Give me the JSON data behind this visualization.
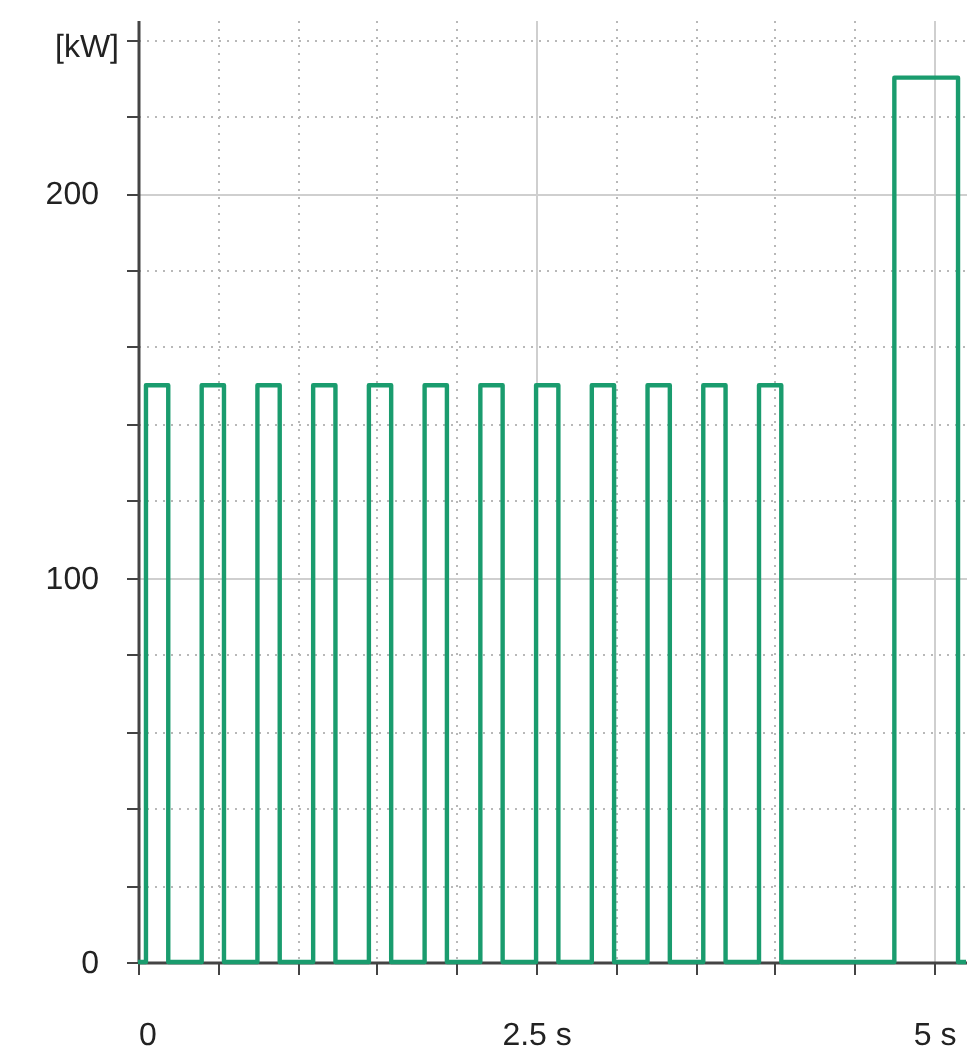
{
  "chart_data": {
    "type": "step",
    "ylabel": "[kW]",
    "x": [
      0,
      0.05,
      0.19,
      0.4,
      0.54,
      0.75,
      0.89,
      1.1,
      1.24,
      1.45,
      1.59,
      1.8,
      1.94,
      2.15,
      2.29,
      2.5,
      2.64,
      2.85,
      2.99,
      3.2,
      3.34,
      3.55,
      3.69,
      3.9,
      4.04,
      4.75,
      5.15,
      5.2
    ],
    "series": [
      {
        "color": "#1a9c6e",
        "values": [
          0,
          150,
          0,
          150,
          0,
          150,
          0,
          150,
          0,
          150,
          0,
          150,
          0,
          150,
          0,
          150,
          0,
          150,
          0,
          150,
          0,
          150,
          0,
          150,
          0,
          230,
          0,
          0
        ]
      }
    ],
    "xlim": [
      0,
      5.2
    ],
    "xticks": [
      0,
      {
        "value": 0.5,
        "label": null
      },
      {
        "value": 1,
        "label": null
      },
      {
        "value": 1.5,
        "label": null
      },
      {
        "value": 2,
        "label": null
      },
      {
        "value": 2.5,
        "label": "2.5 s"
      },
      {
        "value": 3,
        "label": null
      },
      {
        "value": 3.5,
        "label": null
      },
      {
        "value": 4,
        "label": null
      },
      {
        "value": 4.5,
        "label": null
      },
      {
        "value": 5,
        "label": "5 s"
      }
    ],
    "ylim": [
      0,
      245
    ],
    "yticks": [
      0,
      {
        "value": 20,
        "label": null
      },
      {
        "value": 40,
        "label": null
      },
      {
        "value": 60,
        "label": null
      },
      {
        "value": 80,
        "label": null
      },
      100,
      {
        "value": 120,
        "label": null
      },
      {
        "value": 140,
        "label": null
      },
      {
        "value": 160,
        "label": null
      },
      {
        "value": 180,
        "label": null
      },
      200,
      {
        "value": 220,
        "label": null
      },
      {
        "value": 240,
        "label": null
      }
    ],
    "grid": true,
    "line_style": "solid",
    "marker": "none"
  }
}
